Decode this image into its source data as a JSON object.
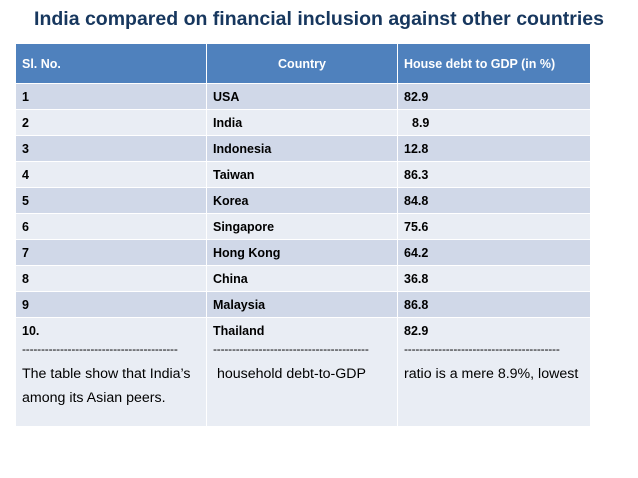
{
  "title": "India compared on financial inclusion against other countries",
  "table": {
    "headers": [
      "Sl. No.",
      "Country",
      "House debt to GDP (in %)"
    ],
    "rows": [
      {
        "sl": "1",
        "country": "USA",
        "value": "82.9"
      },
      {
        "sl": "2",
        "country": "India",
        "value": "8.9"
      },
      {
        "sl": "3",
        "country": "Indonesia",
        "value": "12.8"
      },
      {
        "sl": "4",
        "country": "Taiwan",
        "value": "86.3"
      },
      {
        "sl": "5",
        "country": "Korea",
        "value": "84.8"
      },
      {
        "sl": "6",
        "country": "Singapore",
        "value": "75.6"
      },
      {
        "sl": "7",
        "country": "Hong Kong",
        "value": "64.2"
      },
      {
        "sl": "8",
        "country": "China",
        "value": "36.8"
      },
      {
        "sl": "9",
        "country": "Malaysia",
        "value": "86.8"
      },
      {
        "sl": "10.",
        "country": "Thailand",
        "value": "82.9"
      }
    ],
    "note": {
      "dashes": "-----------------------------------------",
      "col1": "The table show that India’s among its Asian peers.",
      "col2": " household debt-to-GDP",
      "col3": "ratio is a mere 8.9%, lowest"
    }
  }
}
